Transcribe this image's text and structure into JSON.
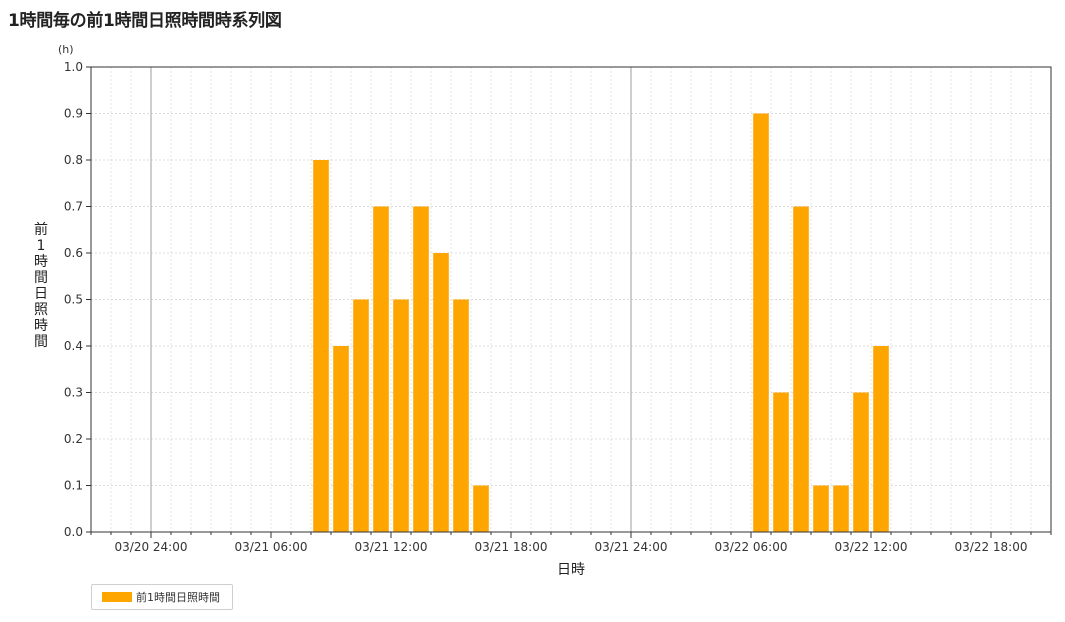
{
  "title": "1時間毎の前1時間日照時間時系列図",
  "chart_data": {
    "type": "bar",
    "ylabel": "前1時間日照時間",
    "yunit": "(h)",
    "xlabel": "日時",
    "ylim": [
      0,
      1.0
    ],
    "yticks": [
      "0.0",
      "0.1",
      "0.2",
      "0.3",
      "0.4",
      "0.5",
      "0.6",
      "0.7",
      "0.8",
      "0.9",
      "1.0"
    ],
    "x_range_hours": [
      -3,
      45
    ],
    "xticks": [
      {
        "hour": 0,
        "label": "03/20 24:00"
      },
      {
        "hour": 6,
        "label": "03/21 06:00"
      },
      {
        "hour": 12,
        "label": "03/21 12:00"
      },
      {
        "hour": 18,
        "label": "03/21 18:00"
      },
      {
        "hour": 24,
        "label": "03/21 24:00"
      },
      {
        "hour": 30,
        "label": "03/22 06:00"
      },
      {
        "hour": 36,
        "label": "03/22 12:00"
      },
      {
        "hour": 42,
        "label": "03/22 18:00"
      }
    ],
    "day_boundaries_hours": [
      0,
      24
    ],
    "bar_color": "#ffa500",
    "grid": true,
    "legend_position": "bottom-left",
    "series": [
      {
        "name": "前1時間日照時間",
        "points": [
          {
            "hour": 9,
            "value": 0.8
          },
          {
            "hour": 10,
            "value": 0.4
          },
          {
            "hour": 11,
            "value": 0.5
          },
          {
            "hour": 12,
            "value": 0.7
          },
          {
            "hour": 13,
            "value": 0.5
          },
          {
            "hour": 14,
            "value": 0.7
          },
          {
            "hour": 15,
            "value": 0.6
          },
          {
            "hour": 16,
            "value": 0.5
          },
          {
            "hour": 17,
            "value": 0.1
          },
          {
            "hour": 31,
            "value": 0.9
          },
          {
            "hour": 32,
            "value": 0.3
          },
          {
            "hour": 33,
            "value": 0.7
          },
          {
            "hour": 34,
            "value": 0.1
          },
          {
            "hour": 35,
            "value": 0.1
          },
          {
            "hour": 36,
            "value": 0.3
          },
          {
            "hour": 37,
            "value": 0.4
          }
        ]
      }
    ]
  },
  "legend": {
    "label": "前1時間日照時間"
  }
}
